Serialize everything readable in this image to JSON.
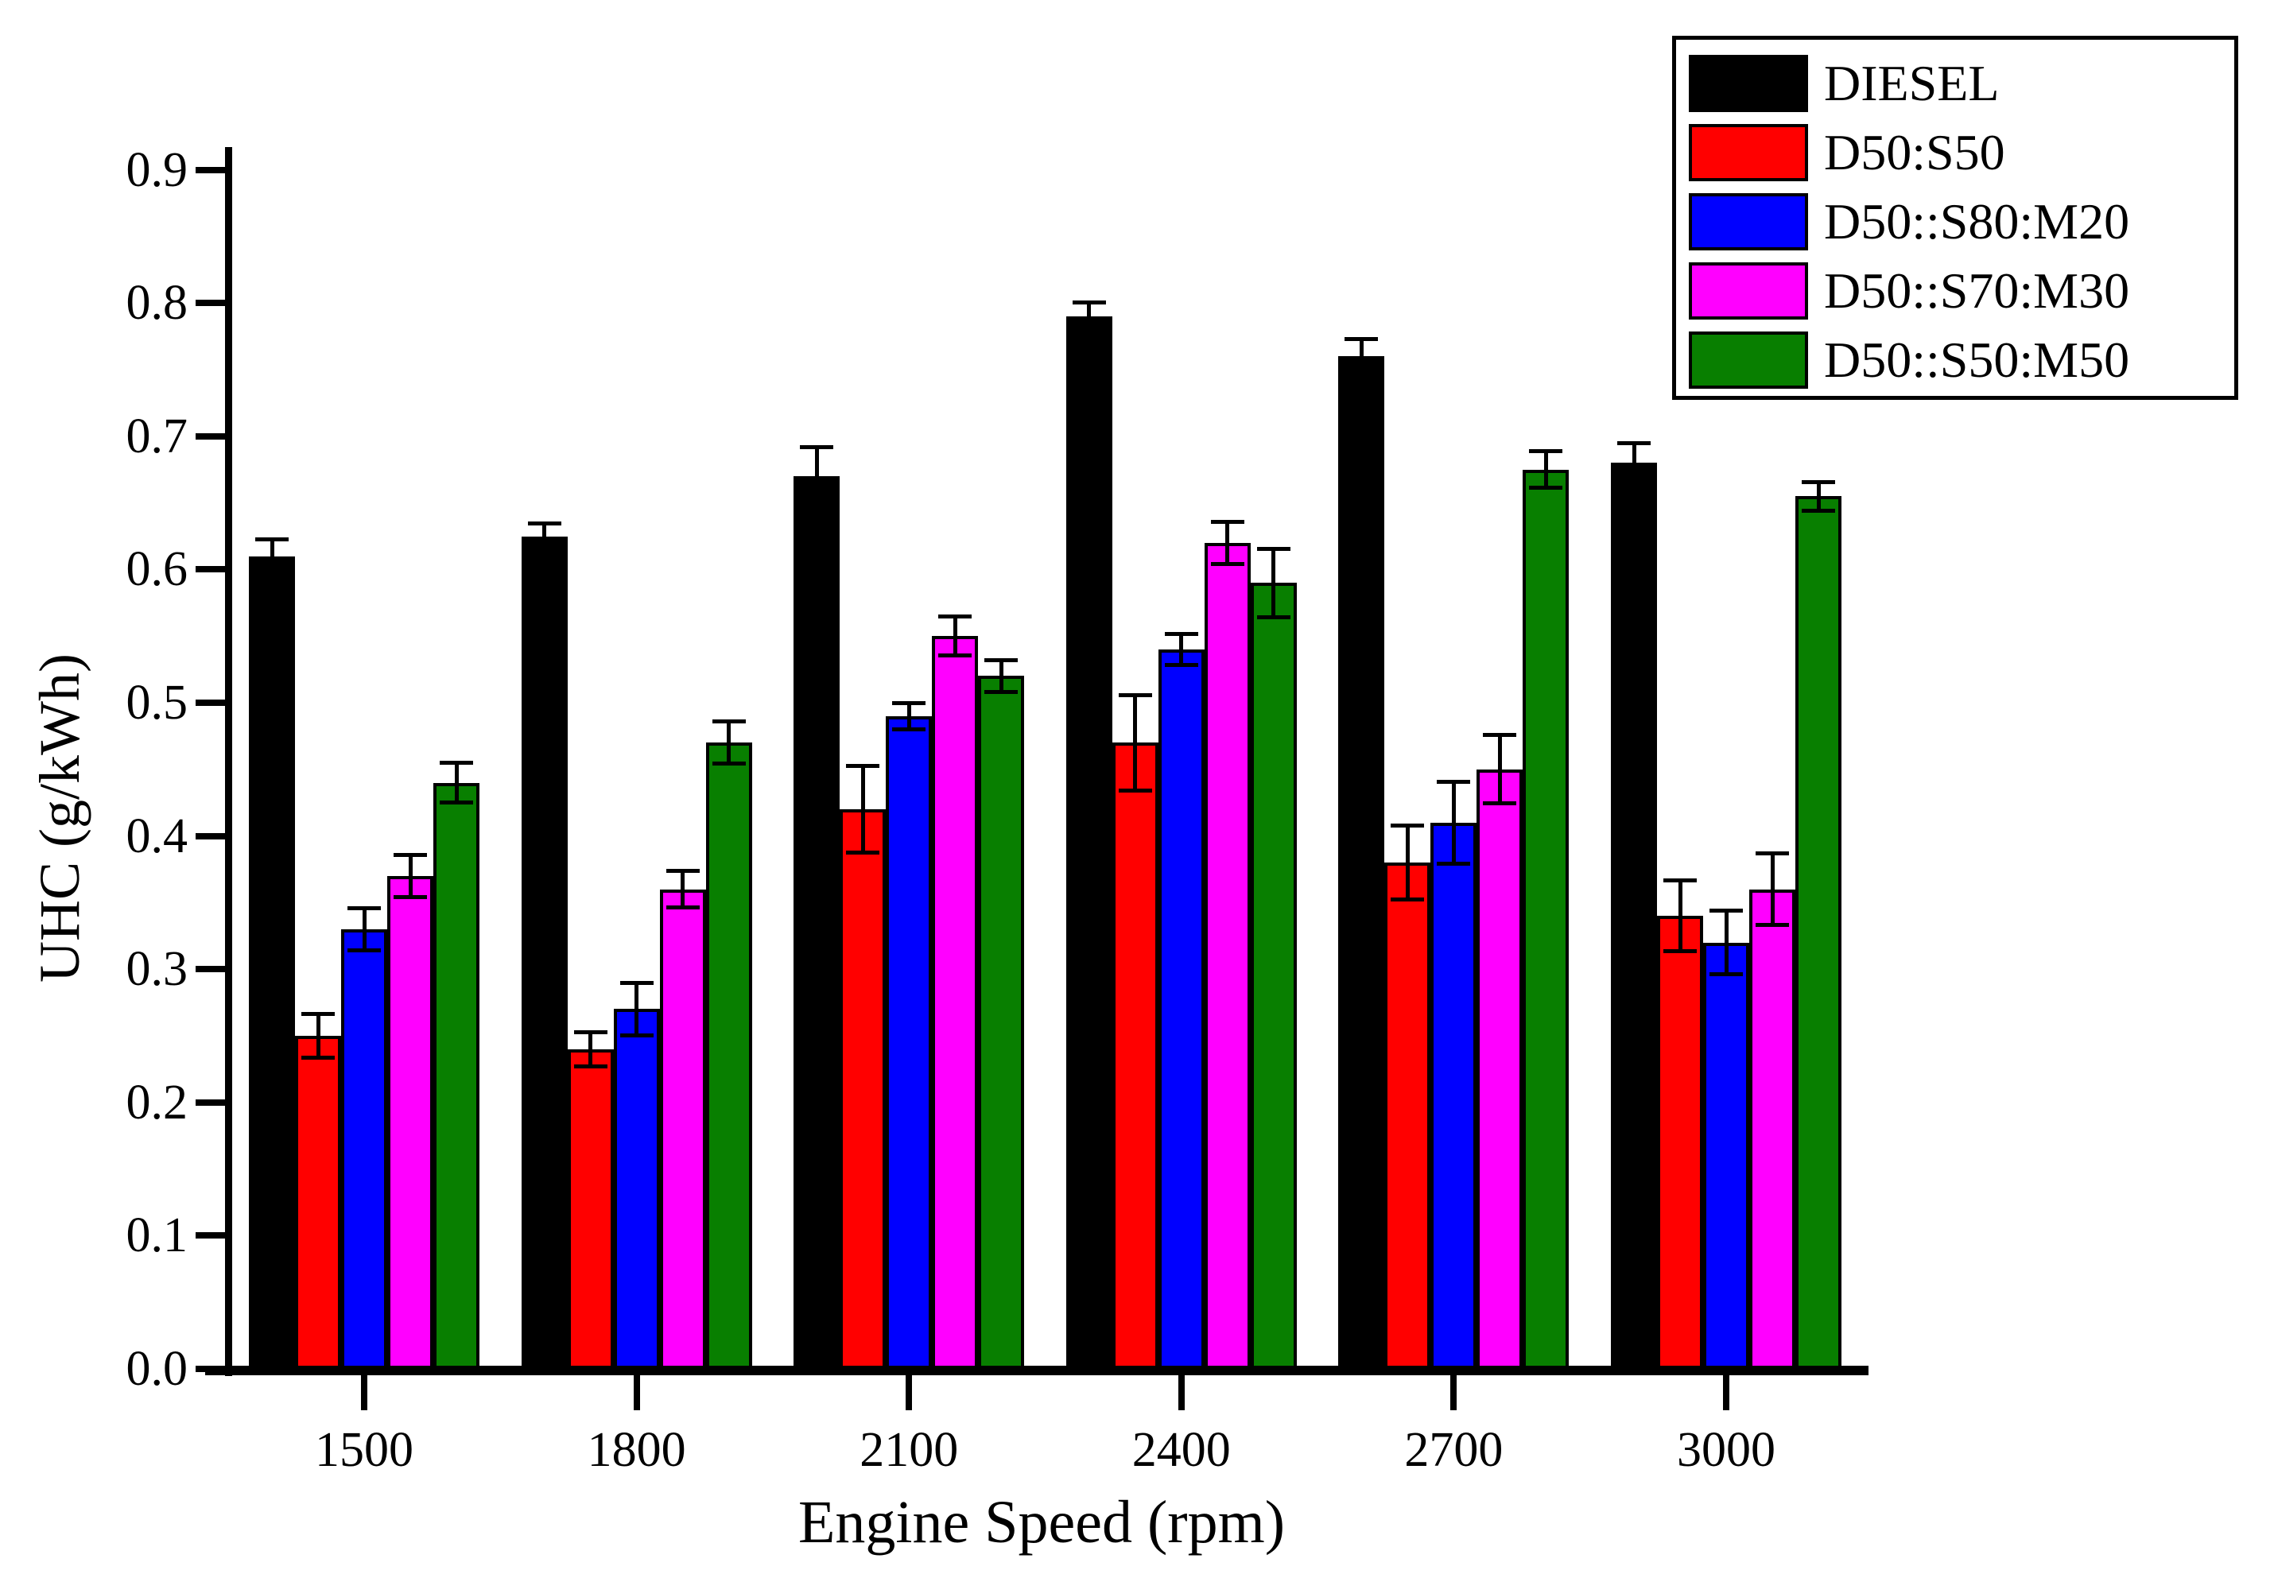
{
  "chart_data": {
    "type": "bar",
    "title": "",
    "xlabel": "Engine Speed (rpm)",
    "ylabel": "UHC (g/kWh)",
    "categories": [
      "1500",
      "1800",
      "2100",
      "2400",
      "2700",
      "3000"
    ],
    "ylim": [
      0.0,
      0.9
    ],
    "ytick_step": 0.1,
    "grid": false,
    "legend_position": "top-right",
    "error_bars": true,
    "series": [
      {
        "name": "DIESEL",
        "color": "#000000",
        "pattern": "solid",
        "values": [
          0.61,
          0.625,
          0.67,
          0.79,
          0.76,
          0.68
        ],
        "errors": [
          0.013,
          0.01,
          0.022,
          0.011,
          0.013,
          0.015
        ]
      },
      {
        "name": "D50:S50",
        "color": "#ff0000",
        "pattern": "solid",
        "values": [
          0.25,
          0.24,
          0.42,
          0.47,
          0.38,
          0.34
        ],
        "errors": [
          0.017,
          0.013,
          0.033,
          0.036,
          0.028,
          0.027
        ]
      },
      {
        "name": "D50::S80:M20",
        "color": "#0000ff",
        "pattern": "solid",
        "values": [
          0.33,
          0.27,
          0.49,
          0.54,
          0.41,
          0.32
        ],
        "errors": [
          0.016,
          0.02,
          0.01,
          0.012,
          0.031,
          0.024
        ]
      },
      {
        "name": "D50::S70:M30",
        "color": "#ff00ff",
        "pattern": "solid",
        "values": [
          0.37,
          0.36,
          0.55,
          0.62,
          0.45,
          0.36
        ],
        "errors": [
          0.016,
          0.014,
          0.015,
          0.016,
          0.026,
          0.027
        ]
      },
      {
        "name": "D50::S50:M50",
        "color": "#087f00",
        "pattern": "dots",
        "values": [
          0.44,
          0.47,
          0.52,
          0.59,
          0.675,
          0.655
        ],
        "errors": [
          0.015,
          0.016,
          0.012,
          0.026,
          0.014,
          0.011
        ]
      }
    ]
  }
}
